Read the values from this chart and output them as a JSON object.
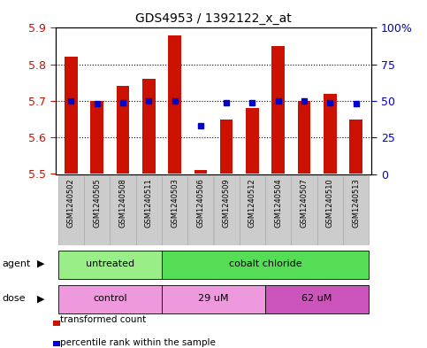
{
  "title": "GDS4953 / 1392122_x_at",
  "samples": [
    "GSM1240502",
    "GSM1240505",
    "GSM1240508",
    "GSM1240511",
    "GSM1240503",
    "GSM1240506",
    "GSM1240509",
    "GSM1240512",
    "GSM1240504",
    "GSM1240507",
    "GSM1240510",
    "GSM1240513"
  ],
  "transformed_count": [
    5.82,
    5.7,
    5.74,
    5.76,
    5.88,
    5.51,
    5.65,
    5.68,
    5.85,
    5.7,
    5.72,
    5.65
  ],
  "percentile_rank": [
    50,
    48,
    49,
    50,
    50,
    33,
    49,
    49,
    50,
    50,
    49,
    48
  ],
  "ylim_left": [
    5.5,
    5.9
  ],
  "ylim_right": [
    0,
    100
  ],
  "yticks_left": [
    5.5,
    5.6,
    5.7,
    5.8,
    5.9
  ],
  "yticks_right": [
    0,
    25,
    50,
    75,
    100
  ],
  "ytick_labels_right": [
    "0",
    "25",
    "50",
    "75",
    "100%"
  ],
  "hlines": [
    5.6,
    5.7,
    5.8
  ],
  "bar_color": "#cc1100",
  "dot_color": "#0000cc",
  "bar_width": 0.5,
  "agent_groups": [
    {
      "label": "untreated",
      "start": 0,
      "end": 4,
      "color": "#99ee88"
    },
    {
      "label": "cobalt chloride",
      "start": 4,
      "end": 12,
      "color": "#55dd55"
    }
  ],
  "dose_groups": [
    {
      "label": "control",
      "start": 0,
      "end": 4,
      "color": "#ee99dd"
    },
    {
      "label": "29 uM",
      "start": 4,
      "end": 8,
      "color": "#ee99dd"
    },
    {
      "label": "62 uM",
      "start": 8,
      "end": 12,
      "color": "#cc55bb"
    }
  ],
  "legend_bar_color": "#cc1100",
  "legend_dot_color": "#0000cc",
  "legend_bar_label": "transformed count",
  "legend_dot_label": "percentile rank within the sample",
  "background_color": "#ffffff",
  "plot_bg_color": "#ffffff",
  "tick_label_color_left": "#cc1100",
  "tick_label_color_right": "#0000cc",
  "gray_bg": "#cccccc",
  "gray_sep": "#aaaaaa"
}
